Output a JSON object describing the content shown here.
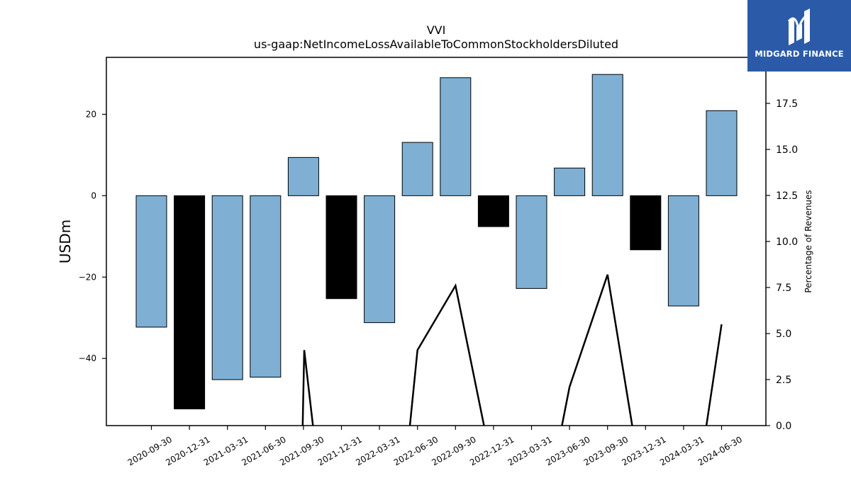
{
  "chart_data": {
    "type": "bar",
    "title": "VVI",
    "subtitle": "us-gaap:NetIncomeLossAvailableToCommonStockholdersDiluted",
    "ylabel": "USDm",
    "y2label": "Percentage of Revenues",
    "categories": [
      "2020-09-30",
      "2020-12-31",
      "2021-03-31",
      "2021-06-30",
      "2021-09-30",
      "2021-12-31",
      "2022-03-31",
      "2022-06-30",
      "2022-09-30",
      "2022-12-31",
      "2023-03-31",
      "2023-06-30",
      "2023-09-30",
      "2023-12-31",
      "2024-03-31",
      "2024-06-30"
    ],
    "values": [
      -32.3,
      -52.4,
      -45.2,
      -44.6,
      9.4,
      -25.3,
      -31.2,
      13.1,
      29.0,
      -7.6,
      -22.8,
      6.8,
      29.8,
      -13.3,
      -27.1,
      20.9
    ],
    "bar_colors": [
      "#7fb0d4",
      "#000000",
      "#7fb0d4",
      "#7fb0d4",
      "#7fb0d4",
      "#000000",
      "#7fb0d4",
      "#7fb0d4",
      "#7fb0d4",
      "#000000",
      "#7fb0d4",
      "#7fb0d4",
      "#7fb0d4",
      "#000000",
      "#7fb0d4",
      "#7fb0d4"
    ],
    "ylim": [
      -56.5,
      34
    ],
    "yticks": [
      -40,
      -20,
      0,
      20
    ],
    "ytick_labels": [
      "−40",
      "−20",
      "0",
      "20"
    ],
    "line": {
      "name": "Percentage of Revenues",
      "color": "#000000",
      "points": [
        [
          3.98,
          0
        ],
        [
          4.02,
          4.1
        ],
        [
          4.25,
          0
        ],
        null,
        [
          6.8,
          0
        ],
        [
          7.0,
          4.1
        ],
        [
          8.0,
          7.6
        ],
        [
          8.75,
          0
        ],
        null,
        [
          10.8,
          0
        ],
        [
          11.0,
          2.1
        ],
        [
          12.0,
          8.2
        ],
        [
          12.65,
          0
        ],
        null,
        [
          14.6,
          0
        ],
        [
          15.0,
          5.5
        ]
      ]
    },
    "y2lim": [
      0,
      20
    ],
    "y2ticks": [
      0,
      2.5,
      5.0,
      7.5,
      10.0,
      12.5,
      15.0,
      17.5
    ],
    "y2tick_labels": [
      "0.0",
      "2.5",
      "5.0",
      "7.5",
      "10.0",
      "12.5",
      "15.0",
      "17.5"
    ],
    "grid": false,
    "legend": "none"
  },
  "logo": {
    "text": "MIDGARD FINANCE"
  }
}
